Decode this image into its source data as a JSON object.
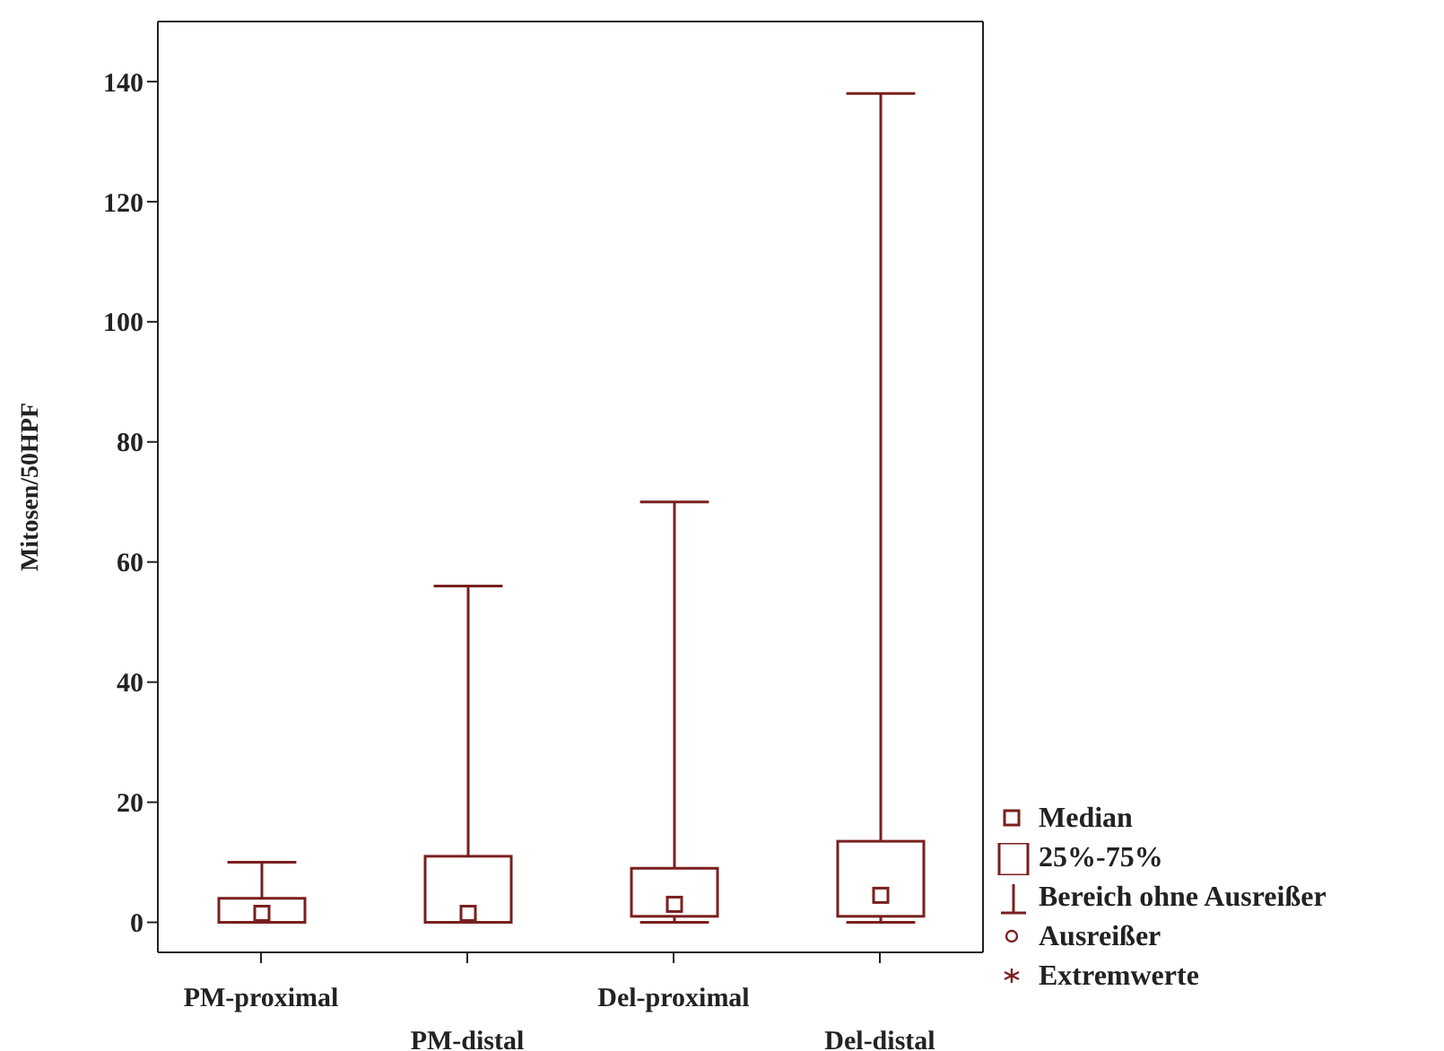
{
  "chart_data": {
    "type": "box",
    "ylabel": "Mitosen/50HPF",
    "categories": [
      "PM-proximal",
      "PM-distal",
      "Del-proximal",
      "Del-distal"
    ],
    "color": "#7a1f1f",
    "boxes": [
      {
        "low": 0,
        "q1": 0,
        "median": 1.5,
        "q3": 4,
        "high": 10
      },
      {
        "low": 0,
        "q1": 0,
        "median": 1.5,
        "q3": 11,
        "high": 56
      },
      {
        "low": 0,
        "q1": 1,
        "median": 3,
        "q3": 9,
        "high": 70
      },
      {
        "low": 0,
        "q1": 1,
        "median": 4.5,
        "q3": 13.5,
        "high": 138
      }
    ],
    "ylim": [
      -5,
      150
    ],
    "yticks": [
      0,
      20,
      40,
      60,
      80,
      100,
      120,
      140
    ],
    "grid": false,
    "annotations": [
      "Median",
      "25%-75%",
      "Bereich ohne Ausreißer",
      "Ausreißer",
      "Extremwerte"
    ]
  }
}
